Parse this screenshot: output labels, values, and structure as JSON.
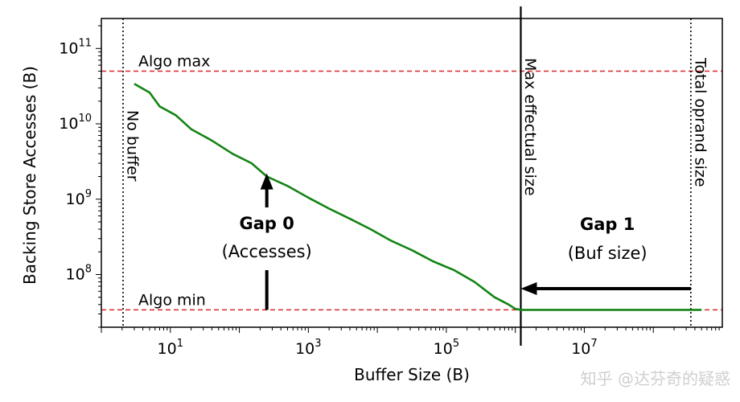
{
  "chart_data": {
    "type": "line",
    "x_scale": "log",
    "y_scale": "log",
    "xlabel": "Buffer Size (B)",
    "ylabel": "Backing Store Accesses (B)",
    "xlim": [
      1,
      1000000000.0
    ],
    "ylim": [
      20000000.0,
      250000000000.0
    ],
    "x_ticks": [
      {
        "value": 10,
        "base": "10",
        "exp": "1"
      },
      {
        "value": 1000,
        "base": "10",
        "exp": "3"
      },
      {
        "value": 100000,
        "base": "10",
        "exp": "5"
      },
      {
        "value": 10000000,
        "base": "10",
        "exp": "7"
      }
    ],
    "y_ticks": [
      {
        "value": 100000000.0,
        "base": "10",
        "exp": "8"
      },
      {
        "value": 1000000000.0,
        "base": "10",
        "exp": "9"
      },
      {
        "value": 10000000000.0,
        "base": "10",
        "exp": "10"
      },
      {
        "value": 100000000000.0,
        "base": "10",
        "exp": "11"
      }
    ],
    "series": [
      {
        "color": "#138413",
        "x": [
          3,
          5,
          7,
          12,
          20,
          40,
          80,
          150,
          250,
          500,
          1000,
          2000,
          4000,
          8000,
          16000,
          32000,
          64000,
          128000,
          256000,
          500000,
          800000,
          1000000,
          1200000,
          500000000
        ],
        "y": [
          34000000000.0,
          26000000000.0,
          17000000000.0,
          13000000000.0,
          8500000000.0,
          6000000000.0,
          4000000000.0,
          3000000000.0,
          2000000000.0,
          1500000000.0,
          1050000000.0,
          750000000.0,
          550000000.0,
          400000000.0,
          280000000.0,
          210000000.0,
          150000000.0,
          115000000.0,
          80000000.0,
          50000000.0,
          40000000.0,
          35000000.0,
          34000000.0,
          34000000.0
        ]
      }
    ],
    "hlines": [
      {
        "label": "Algo max",
        "y": 50000000000.0,
        "color": "#d62728",
        "style": "dashed"
      },
      {
        "label": "Algo min",
        "y": 34000000.0,
        "color": "#d62728",
        "style": "dashed"
      }
    ],
    "vlines": [
      {
        "label": "No buffer",
        "x": 1,
        "style": "dotted",
        "color": "#000000"
      },
      {
        "label": "Max effectual size",
        "x": 1200000,
        "style": "solid",
        "color": "#000000"
      },
      {
        "label": "Total oprand size",
        "x": 350000000,
        "style": "dotted",
        "color": "#000000"
      }
    ],
    "annotations": [
      {
        "title": "Gap 0",
        "subtitle": "(Accesses)",
        "x": 250,
        "y_from": 34000000.0,
        "y_to": 2200000000.0
      },
      {
        "title": "Gap 1",
        "subtitle": "(Buf size)",
        "y": 65000000.0,
        "x_from": 350000000,
        "x_to": 1200000
      }
    ]
  },
  "watermark": "知乎 @达芬奇的疑惑"
}
